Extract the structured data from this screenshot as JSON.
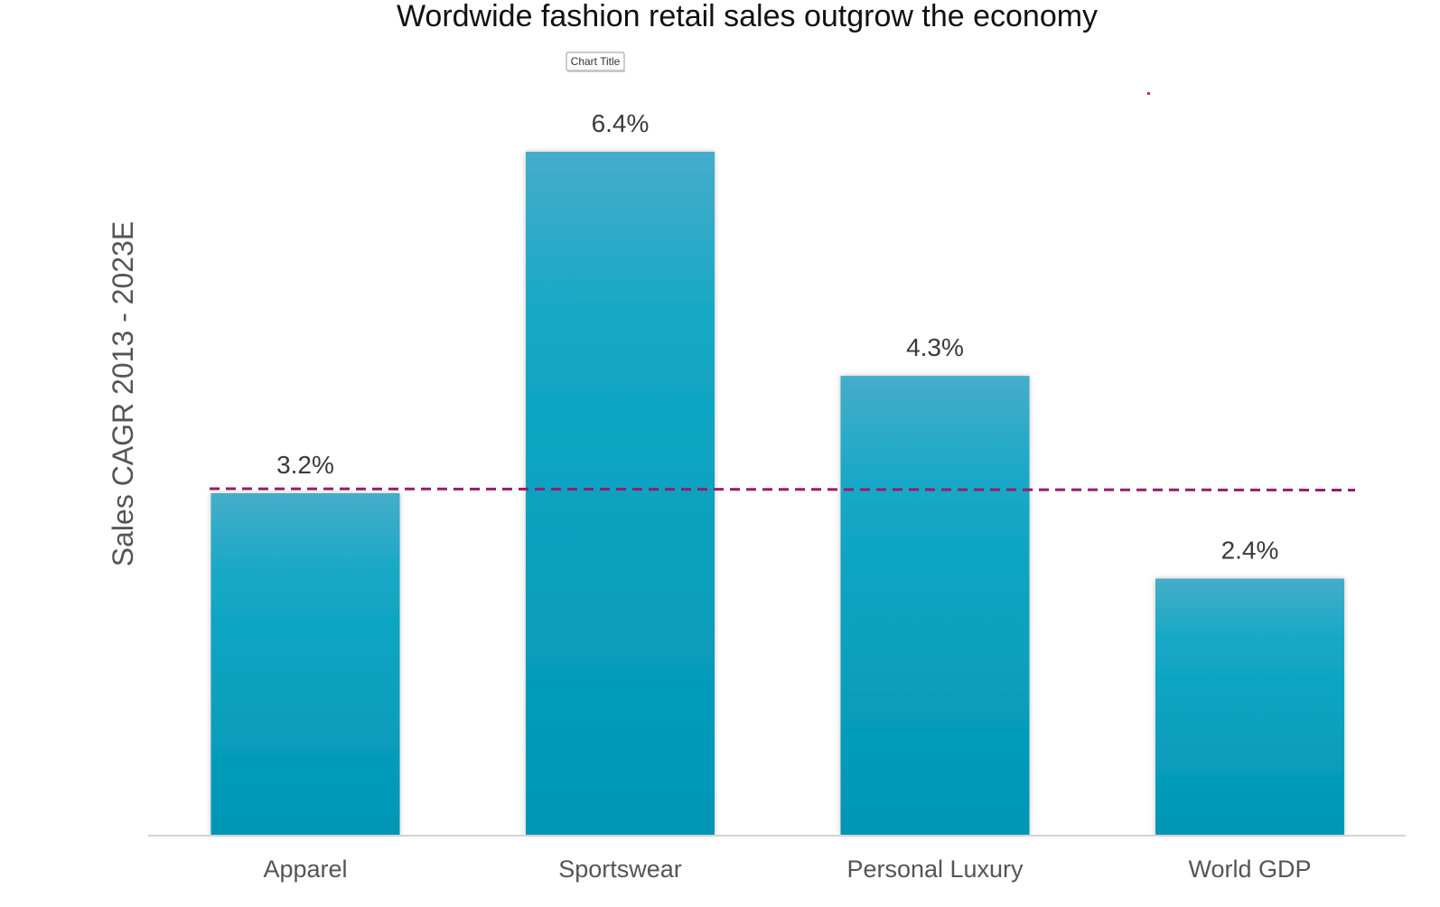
{
  "chart_title_chip": "Chart Title",
  "chart_data": {
    "type": "bar",
    "title": "Wordwide fashion retail sales outgrow the economy",
    "xlabel": "",
    "ylabel": "Sales CAGR 2013 - 2023E",
    "categories": [
      "Apparel",
      "Sportswear",
      "Personal Luxury",
      "World GDP"
    ],
    "values": [
      3.2,
      6.4,
      4.3,
      2.4
    ],
    "value_labels": [
      "3.2%",
      "6.4%",
      "4.3%",
      "2.4%"
    ],
    "reference_line": {
      "value": 3.2,
      "style": "dashed",
      "color": "#9b1a6a"
    },
    "ylim": [
      0,
      6.4
    ],
    "bar_color_top": "#45adc9",
    "bar_color_bottom": "#0096b6",
    "grid": false,
    "legend": "none"
  }
}
